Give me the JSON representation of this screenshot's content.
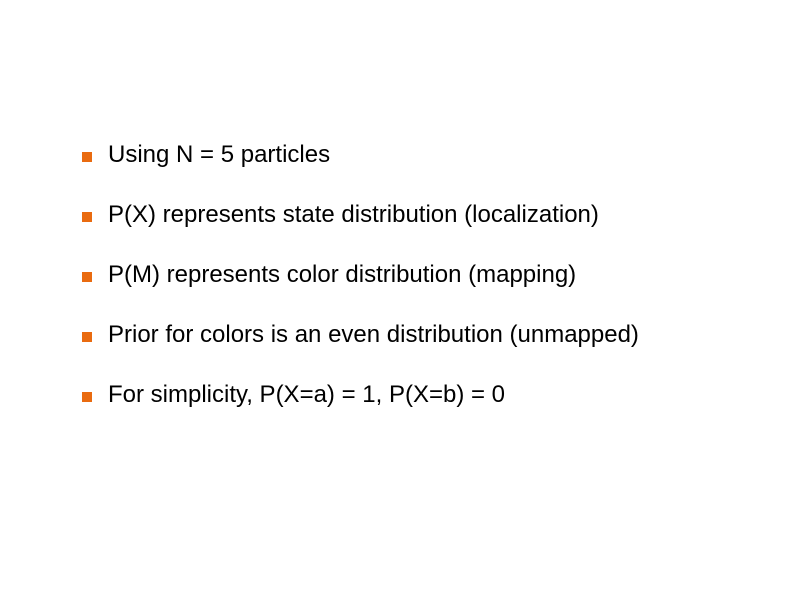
{
  "slide": {
    "bullet_color": "#e96b10",
    "text_color": "#000000",
    "background_color": "#ffffff",
    "font_size_pt": 24,
    "bullets": [
      {
        "text": "Using N = 5 particles"
      },
      {
        "text": "P(X) represents state distribution (localization)"
      },
      {
        "text": "P(M) represents color distribution (mapping)"
      },
      {
        "text": "Prior for colors is an even distribution (unmapped)"
      },
      {
        "text": "For simplicity, P(X=a) = 1, P(X=b) = 0"
      }
    ]
  }
}
